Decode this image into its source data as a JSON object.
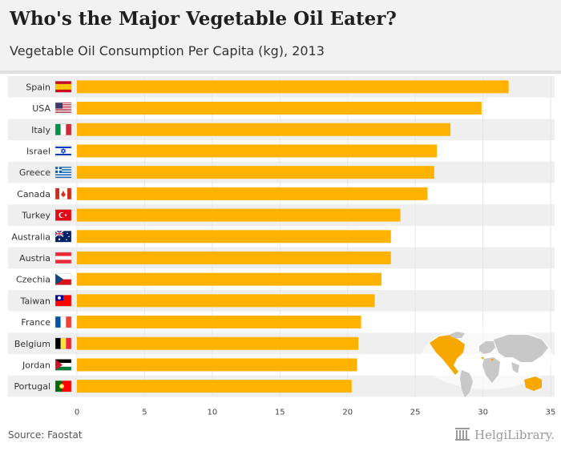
{
  "header": {
    "title": "Who's the Major Vegetable Oil Eater?",
    "subtitle": "Vegetable Oil Consumption Per Capita (kg), 2013"
  },
  "footer": {
    "source": "Source: Faostat",
    "logo_text": "HelgiLibrary."
  },
  "colors": {
    "bar": "#ffb300",
    "row_band": "#efefef",
    "map_highlight": "#f7a800",
    "map_base": "#c8c8c8"
  },
  "chart_data": {
    "type": "bar",
    "orientation": "horizontal",
    "title": "Who's the Major Vegetable Oil Eater?",
    "subtitle": "Vegetable Oil Consumption Per Capita (kg), 2013",
    "categories": [
      "Spain",
      "USA",
      "Italy",
      "Israel",
      "Greece",
      "Canada",
      "Turkey",
      "Australia",
      "Austria",
      "Czechia",
      "Taiwan",
      "France",
      "Belgium",
      "Jordan",
      "Portugal"
    ],
    "values": [
      31.9,
      29.9,
      27.6,
      26.6,
      26.4,
      25.9,
      23.9,
      23.2,
      23.2,
      22.5,
      22.0,
      21.0,
      20.8,
      20.7,
      20.3
    ],
    "flag_icons": [
      "spain-flag-icon",
      "usa-flag-icon",
      "italy-flag-icon",
      "israel-flag-icon",
      "greece-flag-icon",
      "canada-flag-icon",
      "turkey-flag-icon",
      "australia-flag-icon",
      "austria-flag-icon",
      "czechia-flag-icon",
      "taiwan-flag-icon",
      "france-flag-icon",
      "belgium-flag-icon",
      "jordan-flag-icon",
      "portugal-flag-icon"
    ],
    "xticks": [
      0,
      5,
      10,
      15,
      20,
      25,
      30,
      35
    ],
    "xlim": [
      0,
      35
    ],
    "xlabel": "",
    "ylabel": "",
    "grid": true
  }
}
